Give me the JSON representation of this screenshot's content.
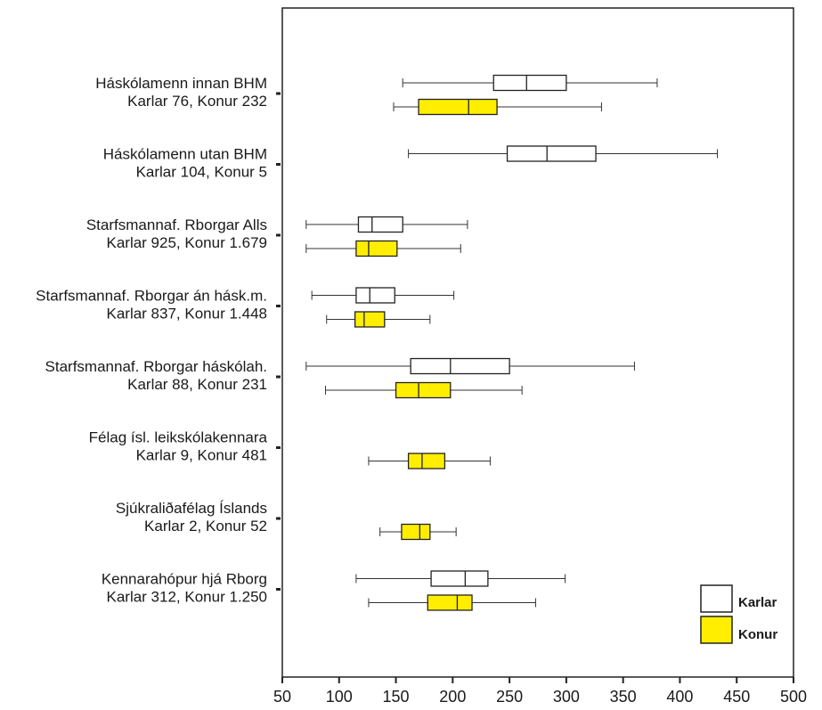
{
  "chart_data": {
    "type": "boxplot",
    "orientation": "horizontal",
    "xlim": [
      50,
      500
    ],
    "xticks": [
      50,
      100,
      150,
      200,
      250,
      300,
      350,
      400,
      450,
      500
    ],
    "grid": false,
    "legend": "right",
    "series": [
      {
        "name": "Karlar",
        "color": "#ffffff"
      },
      {
        "name": "Konur",
        "color": "#ffee00"
      }
    ],
    "categories": [
      {
        "line1": "Háskólamenn innan BHM",
        "line2": "Karlar 76, Konur 232"
      },
      {
        "line1": "Háskólamenn utan BHM",
        "line2": "Karlar 104, Konur 5"
      },
      {
        "line1": "Starfsmannaf. Rborgar Alls",
        "line2": "Karlar 925, Konur 1.679"
      },
      {
        "line1": "Starfsmannaf. Rborgar án hásk.m.",
        "line2": "Karlar 837, Konur 1.448"
      },
      {
        "line1": "Starfsmannaf. Rborgar háskólah.",
        "line2": "Karlar 88, Konur 231"
      },
      {
        "line1": "Félag ísl. leikskólakennara",
        "line2": "Karlar 9, Konur 481"
      },
      {
        "line1": "Sjúkraliðafélag Íslands",
        "line2": "Karlar 2, Konur 52"
      },
      {
        "line1": "Kennarahópur hjá Rborg",
        "line2": "Karlar 312, Konur 1.250"
      }
    ],
    "boxes": [
      {
        "category": 0,
        "series": "Karlar",
        "min": 156,
        "q1": 236,
        "median": 265,
        "q3": 300,
        "max": 380
      },
      {
        "category": 0,
        "series": "Konur",
        "min": 148,
        "q1": 170,
        "median": 214,
        "q3": 239,
        "max": 331
      },
      {
        "category": 1,
        "series": "Karlar",
        "min": 161,
        "q1": 248,
        "median": 283,
        "q3": 326,
        "max": 433
      },
      {
        "category": 2,
        "series": "Karlar",
        "min": 71,
        "q1": 117,
        "median": 129,
        "q3": 156,
        "max": 213
      },
      {
        "category": 2,
        "series": "Konur",
        "min": 71,
        "q1": 115,
        "median": 126,
        "q3": 151,
        "max": 207
      },
      {
        "category": 3,
        "series": "Karlar",
        "min": 76,
        "q1": 115,
        "median": 127,
        "q3": 149,
        "max": 201
      },
      {
        "category": 3,
        "series": "Konur",
        "min": 89,
        "q1": 114,
        "median": 122,
        "q3": 140,
        "max": 180
      },
      {
        "category": 4,
        "series": "Karlar",
        "min": 71,
        "q1": 163,
        "median": 198,
        "q3": 250,
        "max": 360
      },
      {
        "category": 4,
        "series": "Konur",
        "min": 88,
        "q1": 150,
        "median": 170,
        "q3": 198,
        "max": 261
      },
      {
        "category": 5,
        "series": "Konur",
        "min": 126,
        "q1": 161,
        "median": 173,
        "q3": 193,
        "max": 233
      },
      {
        "category": 6,
        "series": "Konur",
        "min": 136,
        "q1": 155,
        "median": 171,
        "q3": 180,
        "max": 203
      },
      {
        "category": 7,
        "series": "Karlar",
        "min": 115,
        "q1": 181,
        "median": 211,
        "q3": 231,
        "max": 299
      },
      {
        "category": 7,
        "series": "Konur",
        "min": 126,
        "q1": 178,
        "median": 204,
        "q3": 217,
        "max": 273
      }
    ]
  }
}
